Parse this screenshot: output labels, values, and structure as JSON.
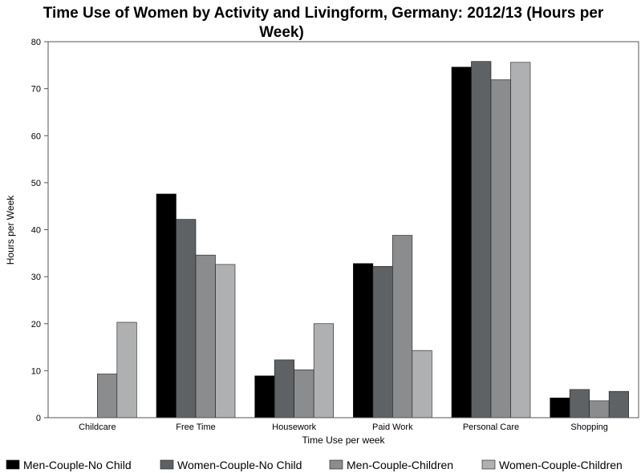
{
  "chart_data": {
    "type": "bar",
    "title_line1": "Time Use of Women by Activity and Livingform, Germany: 2012/13 (Hours per",
    "title_line2": "Week)",
    "xlabel": "Time Use per week",
    "ylabel": "Hours per Week",
    "ylim": [
      0,
      80
    ],
    "yticks": [
      0,
      10,
      20,
      30,
      40,
      50,
      60,
      70,
      80
    ],
    "grid": false,
    "legend_position": "bottom",
    "categories": [
      "Childcare",
      "Free Time",
      "Housework",
      "Paid Work",
      "Personal Care",
      "Shopping"
    ],
    "series": [
      {
        "name": "Men-Couple-No Child",
        "color": "#000000",
        "values": [
          0,
          47.6,
          8.9,
          32.8,
          74.6,
          4.2
        ]
      },
      {
        "name": "Women-Couple-No Child",
        "color": "#5f6264",
        "values": [
          0,
          42.2,
          12.3,
          32.2,
          75.8,
          6.0
        ]
      },
      {
        "name": "Men-Couple-Children",
        "color": "#8a8c8e",
        "values": [
          9.3,
          34.6,
          10.2,
          38.8,
          71.9,
          3.6
        ]
      },
      {
        "name": "Women-Couple-Children",
        "color": "#aeb0b2",
        "values": [
          20.3,
          32.6,
          20.0,
          14.3,
          75.6,
          5.6
        ]
      }
    ],
    "shopping_last_bar_color": "#5f6264"
  }
}
